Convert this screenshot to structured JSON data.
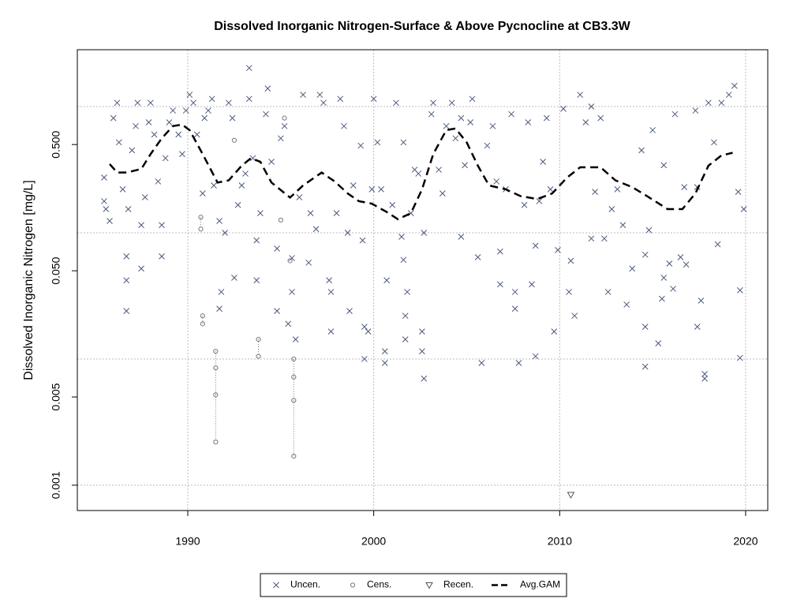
{
  "chart_data": {
    "type": "scatter",
    "title": "Dissolved Inorganic Nitrogen-Surface & Above Pycnocline at CB3.3W",
    "y_label": "Dissolved Inorganic Nitrogen [mg/L]",
    "y_scale": "log",
    "xlim": [
      1984.06,
      2021.19
    ],
    "ylim": [
      0.00063,
      2.82
    ],
    "xticks": [
      1990,
      2000,
      2010,
      2020
    ],
    "yticks": [
      0.001,
      0.005,
      {
        "value": 0.05,
        "label": "0.050"
      },
      {
        "value": 0.5,
        "label": "0.500"
      }
    ],
    "ygrid": [
      0.001,
      0.01,
      0.1,
      1
    ],
    "grid": true,
    "legend": "bottom",
    "series": [
      {
        "name": "Uncen.",
        "color": "#4a5a7a",
        "marker": "x",
        "x": [
          1985.5,
          1985.5,
          1985.6,
          1985.8,
          1986.0,
          1986.2,
          1986.3,
          1986.5,
          1986.7,
          1986.7,
          1986.7,
          1986.8,
          1987.0,
          1987.2,
          1987.3,
          1987.5,
          1987.5,
          1987.7,
          1987.9,
          1988.0,
          1988.2,
          1988.4,
          1988.6,
          1988.6,
          1988.8,
          1989.0,
          1989.2,
          1989.5,
          1989.7,
          1989.9,
          1990.1,
          1990.3,
          1990.5,
          1990.8,
          1990.9,
          1991.1,
          1991.3,
          1991.4,
          1991.7,
          1991.7,
          1991.8,
          1992.0,
          1992.2,
          1992.4,
          1992.5,
          1992.7,
          1992.9,
          1993.1,
          1993.3,
          1993.3,
          1993.5,
          1993.7,
          1993.7,
          1993.9,
          1994.2,
          1994.3,
          1994.5,
          1994.8,
          1994.8,
          1995.0,
          1995.2,
          1995.4,
          1995.6,
          1995.6,
          1995.8,
          1996.0,
          1996.2,
          1996.5,
          1996.6,
          1996.9,
          1997.1,
          1997.3,
          1997.6,
          1997.7,
          1997.7,
          1998.0,
          1998.2,
          1998.4,
          1998.6,
          1998.7,
          1998.9,
          1999.3,
          1999.4,
          1999.5,
          1999.5,
          1999.7,
          1999.9,
          2000.0,
          2000.2,
          2000.4,
          2000.6,
          2000.7,
          2000.6,
          2001.0,
          2001.2,
          2001.5,
          2001.6,
          2001.6,
          2001.7,
          2001.7,
          2001.8,
          2002.0,
          2002.2,
          2002.4,
          2002.6,
          2002.6,
          2002.7,
          2002.7,
          2003.1,
          2003.2,
          2003.5,
          2003.7,
          2003.9,
          2004.2,
          2004.4,
          2004.7,
          2004.7,
          2004.9,
          2005.2,
          2005.3,
          2005.6,
          2005.8,
          2006.1,
          2006.4,
          2006.6,
          2006.8,
          2006.8,
          2007.1,
          2007.4,
          2007.6,
          2007.6,
          2007.8,
          2008.1,
          2008.3,
          2008.5,
          2008.7,
          2008.7,
          2008.9,
          2009.1,
          2009.3,
          2009.5,
          2009.7,
          2009.9,
          2010.2,
          2010.5,
          2010.6,
          2010.8,
          2011.1,
          2011.4,
          2011.7,
          2011.7,
          2011.9,
          2012.2,
          2012.4,
          2012.6,
          2012.8,
          2013.1,
          2013.4,
          2013.6,
          2013.9,
          2014.4,
          2014.6,
          2014.6,
          2014.6,
          2014.8,
          2015.0,
          2015.3,
          2015.5,
          2015.6,
          2015.6,
          2015.9,
          2016.1,
          2016.2,
          2016.5,
          2016.7,
          2016.8,
          2017.3,
          2017.4,
          2017.4,
          2017.6,
          2017.8,
          2017.8,
          2018.0,
          2018.3,
          2018.5,
          2018.7,
          2019.1,
          2019.4,
          2019.6,
          2019.7,
          2019.7,
          2019.9
        ],
        "values": [
          0.274,
          0.178,
          0.154,
          0.124,
          0.81,
          1.07,
          0.52,
          0.221,
          0.065,
          0.042,
          0.024,
          0.154,
          0.45,
          0.7,
          1.07,
          0.115,
          0.052,
          0.191,
          0.75,
          1.07,
          0.6,
          0.255,
          0.065,
          0.115,
          0.39,
          0.75,
          0.93,
          0.6,
          0.42,
          0.93,
          1.24,
          1.07,
          0.6,
          0.205,
          0.81,
          0.93,
          1.15,
          0.237,
          0.124,
          0.025,
          0.034,
          0.1,
          1.07,
          0.81,
          0.044,
          0.166,
          0.237,
          0.294,
          2.02,
          1.15,
          0.39,
          0.042,
          0.087,
          0.143,
          0.87,
          1.39,
          0.365,
          0.075,
          0.024,
          0.56,
          0.7,
          0.019,
          0.063,
          0.034,
          0.0143,
          0.191,
          1.24,
          0.058,
          0.143,
          0.107,
          1.24,
          1.07,
          0.042,
          0.034,
          0.0165,
          0.143,
          1.15,
          0.7,
          0.1,
          0.024,
          0.237,
          0.49,
          0.087,
          0.018,
          0.01,
          0.0165,
          0.221,
          1.15,
          0.52,
          0.221,
          0.0115,
          0.042,
          0.0093,
          0.166,
          1.07,
          0.093,
          0.52,
          0.061,
          0.022,
          0.0143,
          0.034,
          0.143,
          0.316,
          0.294,
          0.0165,
          0.0115,
          0.007,
          0.1,
          0.87,
          1.07,
          0.316,
          0.205,
          0.7,
          1.07,
          0.56,
          0.093,
          0.81,
          0.343,
          0.75,
          1.15,
          0.064,
          0.0093,
          0.49,
          0.7,
          0.255,
          0.039,
          0.071,
          0.221,
          0.87,
          0.034,
          0.025,
          0.0093,
          0.166,
          0.75,
          0.039,
          0.079,
          0.0105,
          0.178,
          0.365,
          0.81,
          0.221,
          0.0165,
          0.073,
          0.96,
          0.034,
          0.06,
          0.022,
          1.24,
          0.75,
          0.09,
          1.0,
          0.211,
          0.81,
          0.09,
          0.034,
          0.154,
          0.221,
          0.115,
          0.027,
          0.052,
          0.45,
          0.067,
          0.018,
          0.0087,
          0.105,
          0.65,
          0.0133,
          0.03,
          0.343,
          0.044,
          0.057,
          0.036,
          0.87,
          0.064,
          0.23,
          0.056,
          0.93,
          0.23,
          0.018,
          0.029,
          0.0076,
          0.007,
          1.07,
          0.52,
          0.081,
          1.07,
          1.24,
          1.46,
          0.211,
          0.035,
          0.0102,
          0.154
        ]
      },
      {
        "name": "Cens.",
        "color": "#777777",
        "marker": "circle",
        "x": [
          1990.7,
          1990.7,
          1990.8,
          1990.8,
          1991.5,
          1991.5,
          1991.5,
          1991.5,
          1992.5,
          1993.8,
          1993.8,
          1995.0,
          1995.2,
          1995.5,
          1995.7,
          1995.7,
          1995.7,
          1995.7
        ],
        "values": [
          0.133,
          0.107,
          0.022,
          0.019,
          0.0115,
          0.0085,
          0.0052,
          0.0022,
          0.54,
          0.0143,
          0.0105,
          0.126,
          0.81,
          0.06,
          0.01,
          0.0072,
          0.0047,
          0.0017
        ]
      },
      {
        "name": "Recen.",
        "color": "#555555",
        "marker": "triangle",
        "x": [
          2010.6
        ],
        "values": [
          0.00084
        ]
      },
      {
        "name": "Avg.GAM",
        "color": "#000000",
        "marker": "line",
        "x": [
          1985.8,
          1986.2,
          1986.7,
          1987.5,
          1988.0,
          1988.6,
          1989.2,
          1989.7,
          1990.1,
          1990.8,
          1991.6,
          1992.2,
          1992.9,
          1993.4,
          1993.9,
          1994.5,
          1995.5,
          1996.2,
          1997.2,
          1997.9,
          1998.6,
          1999.2,
          1999.9,
          2000.7,
          2001.3,
          2002.0,
          2002.6,
          2003.2,
          2003.9,
          2004.4,
          2005.0,
          2005.6,
          2006.2,
          2007.1,
          2007.9,
          2008.8,
          2009.6,
          2010.4,
          2011.1,
          2012.2,
          2013.0,
          2013.9,
          2014.7,
          2015.8,
          2016.6,
          2017.3,
          2018.0,
          2018.7,
          2019.3
        ],
        "values": [
          0.35,
          0.3,
          0.3,
          0.32,
          0.42,
          0.56,
          0.7,
          0.72,
          0.65,
          0.42,
          0.25,
          0.26,
          0.34,
          0.39,
          0.365,
          0.25,
          0.19,
          0.237,
          0.3,
          0.255,
          0.205,
          0.178,
          0.17,
          0.146,
          0.128,
          0.143,
          0.221,
          0.42,
          0.65,
          0.67,
          0.52,
          0.34,
          0.237,
          0.221,
          0.195,
          0.185,
          0.205,
          0.274,
          0.33,
          0.33,
          0.26,
          0.23,
          0.195,
          0.154,
          0.154,
          0.205,
          0.34,
          0.41,
          0.43
        ]
      }
    ]
  }
}
